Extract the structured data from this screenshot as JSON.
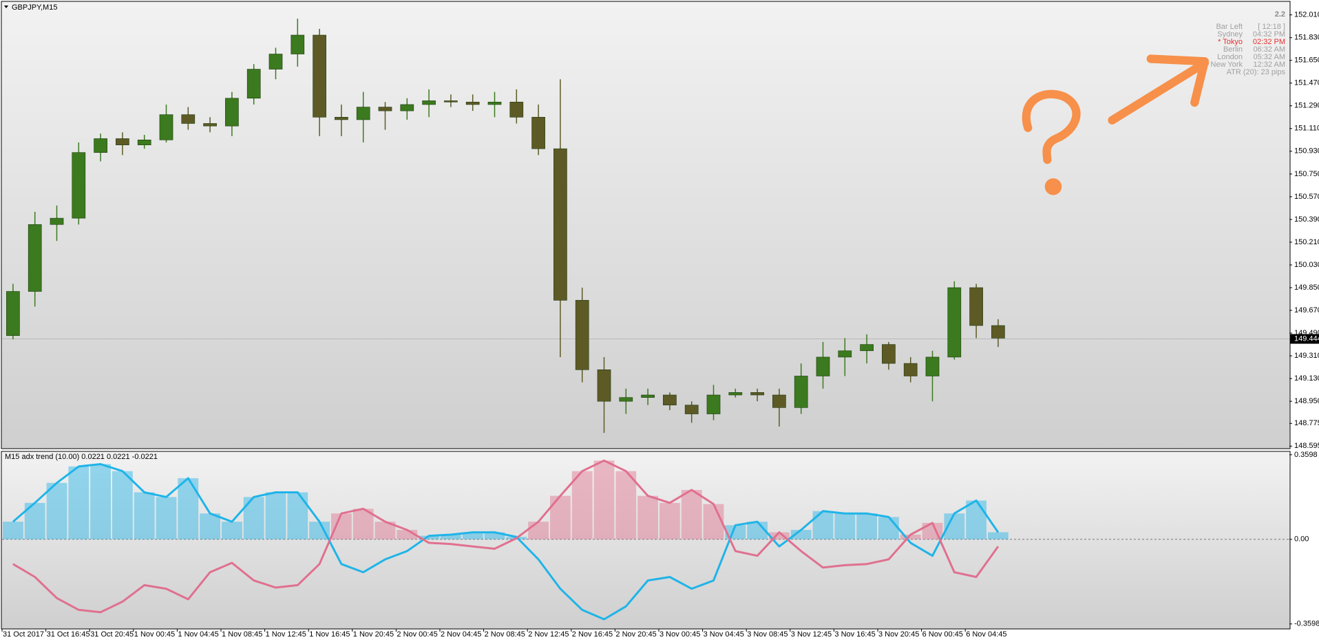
{
  "chart_data": [
    {
      "type": "candlestick",
      "title": "GBPJPY,M15",
      "open": [
        149.47,
        149.82,
        150.35,
        150.4,
        150.92,
        151.03,
        150.98,
        151.02,
        151.22,
        151.15,
        151.13,
        151.35,
        151.58,
        151.7,
        151.85,
        151.2,
        151.18,
        151.28,
        151.25,
        151.3,
        151.33,
        151.32,
        151.3,
        151.32,
        151.2,
        150.95,
        149.75,
        149.2,
        148.95,
        148.98,
        149.0,
        148.92,
        148.85,
        149.0,
        149.02,
        149.0,
        148.9,
        149.15,
        149.3,
        149.35,
        149.4,
        149.25,
        149.15,
        149.3,
        149.85,
        149.55
      ],
      "high": [
        149.88,
        150.45,
        150.5,
        151.0,
        151.07,
        151.08,
        151.06,
        151.3,
        151.28,
        151.2,
        151.4,
        151.62,
        151.75,
        151.98,
        151.9,
        151.3,
        151.4,
        151.32,
        151.35,
        151.42,
        151.38,
        151.38,
        151.4,
        151.42,
        151.3,
        151.5,
        149.85,
        149.3,
        149.05,
        149.05,
        149.02,
        148.95,
        149.08,
        149.05,
        149.05,
        149.05,
        149.25,
        149.42,
        149.45,
        149.48,
        149.42,
        149.3,
        149.35,
        149.9,
        149.88,
        149.6
      ],
      "low": [
        149.44,
        149.7,
        150.22,
        150.35,
        150.85,
        150.9,
        150.95,
        151.0,
        151.1,
        151.08,
        151.05,
        151.3,
        151.5,
        151.6,
        151.05,
        151.05,
        151.0,
        151.1,
        151.18,
        151.2,
        151.28,
        151.25,
        151.2,
        151.15,
        150.9,
        149.3,
        149.1,
        148.7,
        148.85,
        148.92,
        148.88,
        148.78,
        148.8,
        148.98,
        148.95,
        148.75,
        148.85,
        149.05,
        149.15,
        149.25,
        149.2,
        149.1,
        148.95,
        149.28,
        149.45,
        149.38
      ],
      "close": [
        149.82,
        150.35,
        150.4,
        150.92,
        151.03,
        150.98,
        151.02,
        151.22,
        151.15,
        151.13,
        151.35,
        151.58,
        151.7,
        151.85,
        151.2,
        151.18,
        151.28,
        151.25,
        151.3,
        151.33,
        151.32,
        151.3,
        151.32,
        151.2,
        150.95,
        149.75,
        149.2,
        148.95,
        148.98,
        149.0,
        148.92,
        148.85,
        149.0,
        149.02,
        149.0,
        148.9,
        149.15,
        149.3,
        149.35,
        149.4,
        149.25,
        149.15,
        149.3,
        149.85,
        149.55,
        149.45
      ],
      "up_color": "#3b7a1e",
      "down_color": "#5d5a26",
      "current_price": 149.444,
      "ylim": [
        148.575,
        152.117
      ],
      "yticks": [
        {
          "value": 152.01,
          "label": "152.010"
        },
        {
          "value": 151.83,
          "label": "151.830"
        },
        {
          "value": 151.65,
          "label": "151.650"
        },
        {
          "value": 151.47,
          "label": "151.470"
        },
        {
          "value": 151.29,
          "label": "151.290"
        },
        {
          "value": 151.11,
          "label": "151.110"
        },
        {
          "value": 150.93,
          "label": "150.930"
        },
        {
          "value": 150.75,
          "label": "150.750"
        },
        {
          "value": 150.57,
          "label": "150.570"
        },
        {
          "value": 150.39,
          "label": "150.390"
        },
        {
          "value": 150.21,
          "label": "150.210"
        },
        {
          "value": 150.03,
          "label": "150.030"
        },
        {
          "value": 149.85,
          "label": "149.850"
        },
        {
          "value": 149.67,
          "label": "149.670"
        },
        {
          "value": 149.49,
          "label": "149.490"
        },
        {
          "value": 149.31,
          "label": "149.310"
        },
        {
          "value": 149.13,
          "label": "149.130"
        },
        {
          "value": 148.95,
          "label": "148.950"
        },
        148.775,
        148.595
      ],
      "annotations": {
        "spread": "2.2",
        "rows": [
          {
            "label": "Bar Left",
            "value": "[ 12:18 ]",
            "color": "#a0a0a0"
          },
          {
            "label": "Sydney",
            "value": "04:32 PM",
            "color": "#a0a0a0"
          },
          {
            "label": "* Tokyo",
            "value": "02:32 PM",
            "color": "#e03030"
          },
          {
            "label": "Berlin",
            "value": "06:32 AM",
            "color": "#a0a0a0"
          },
          {
            "label": "London",
            "value": "05:32 AM",
            "color": "#a0a0a0"
          },
          {
            "label": "New York",
            "value": "12:32 AM",
            "color": "#a0a0a0"
          }
        ],
        "atr": "ATR (20): 23 pips"
      }
    },
    {
      "type": "line",
      "title": "M15 adx trend (10.00) 0.0221 0.0221 -0.0221",
      "categories": [
        "31 Oct 2017",
        null,
        "31 Oct 16:45",
        null,
        "31 Oct 20:45",
        null,
        "1 Nov 00:45",
        null,
        "1 Nov 04:45",
        null,
        "1 Nov 08:45",
        null,
        "1 Nov 12:45",
        null,
        "1 Nov 16:45",
        null,
        "1 Nov 20:45",
        null,
        "2 Nov 00:45",
        null,
        "2 Nov 04:45",
        null,
        "2 Nov 08:45",
        null,
        "2 Nov 12:45",
        null,
        "2 Nov 16:45",
        null,
        "2 Nov 20:45",
        null,
        "3 Nov 00:45",
        null,
        "3 Nov 04:45",
        null,
        "3 Nov 08:45",
        null,
        "3 Nov 12:45",
        null,
        "3 Nov 16:45",
        null,
        "3 Nov 20:45",
        null,
        "6 Nov 00:45",
        null,
        "6 Nov 04:45",
        null
      ],
      "series": [
        {
          "color": "#1fb4e8",
          "values": [
            0.075,
            0.155,
            0.24,
            0.31,
            0.32,
            0.29,
            0.2,
            0.18,
            0.26,
            0.11,
            0.075,
            0.18,
            0.2,
            0.2,
            0.075,
            -0.105,
            -0.14,
            -0.085,
            -0.05,
            0.015,
            0.02,
            0.03,
            0.03,
            0.01,
            -0.085,
            -0.21,
            -0.3,
            -0.34,
            -0.285,
            -0.175,
            -0.16,
            -0.21,
            -0.175,
            0.06,
            0.075,
            -0.03,
            0.04,
            0.12,
            0.11,
            0.11,
            0.095,
            -0.015,
            -0.07,
            0.11,
            0.165,
            0.03
          ]
        },
        {
          "color": "#e0708f",
          "values": [
            -0.105,
            -0.16,
            -0.25,
            -0.3,
            -0.31,
            -0.265,
            -0.195,
            -0.21,
            -0.255,
            -0.14,
            -0.1,
            -0.175,
            -0.205,
            -0.195,
            -0.105,
            0.11,
            0.13,
            0.075,
            0.04,
            -0.015,
            -0.02,
            -0.03,
            -0.04,
            0.005,
            0.075,
            0.185,
            0.29,
            0.335,
            0.29,
            0.185,
            0.155,
            0.21,
            0.15,
            -0.05,
            -0.07,
            0.03,
            -0.05,
            -0.12,
            -0.11,
            -0.105,
            -0.085,
            0.02,
            0.07,
            -0.14,
            -0.16,
            -0.03
          ]
        }
      ],
      "ylim": [
        -0.381,
        0.374
      ],
      "yticks": [
        0.3598,
        {
          "value": 0,
          "label": "0.00"
        },
        -0.3598
      ]
    }
  ]
}
